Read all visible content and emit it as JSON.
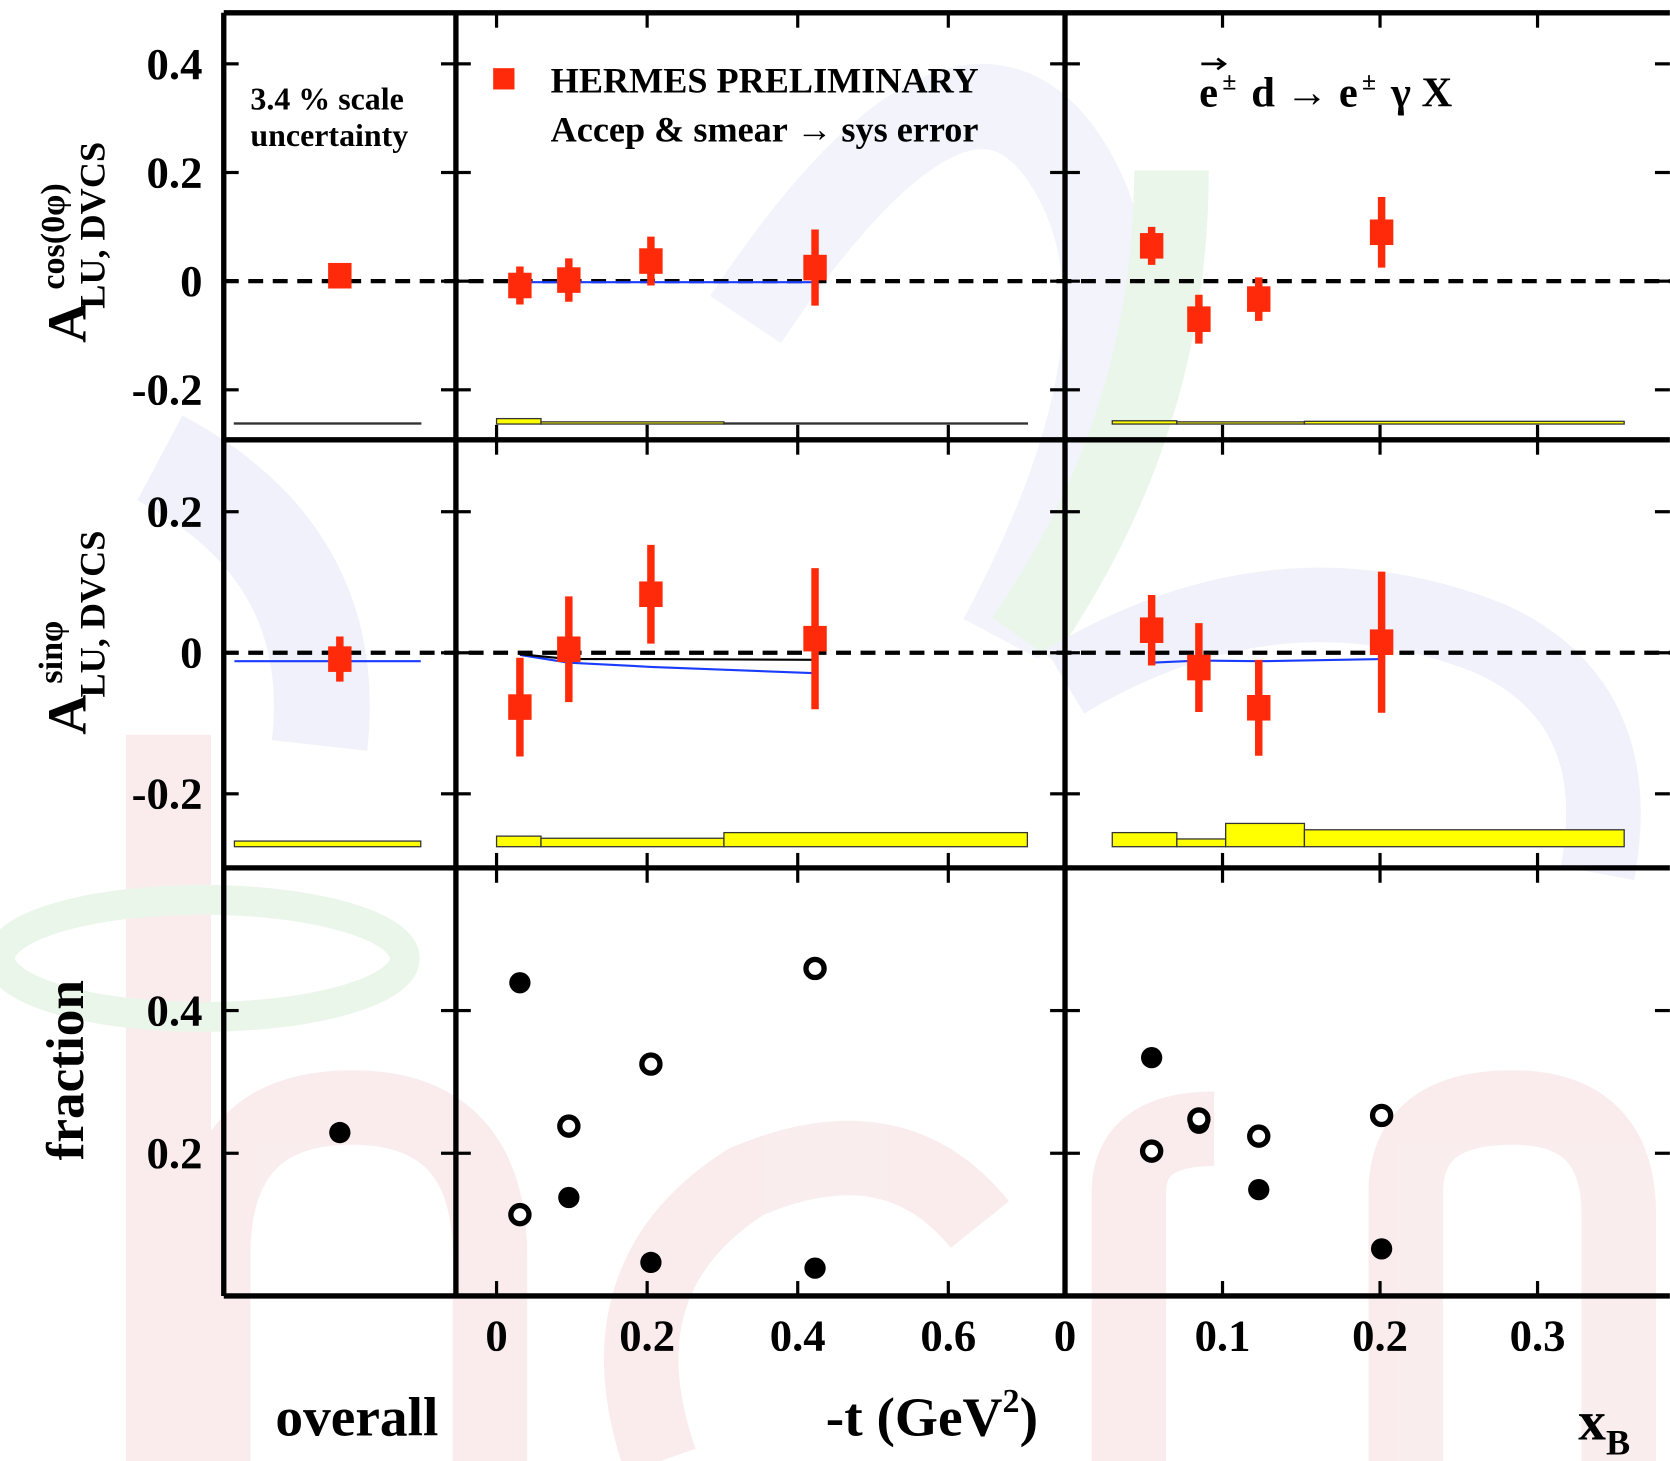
{
  "chart_data": {
    "type": "scatter",
    "legend": [
      {
        "label": "HERMES PRELIMINARY",
        "color": "#ff2a0a",
        "marker": "square"
      },
      {
        "label": "Accep & smear → sys error",
        "color": "#000000"
      }
    ],
    "annotations": {
      "scale_uncertainty": [
        "3.4 % scale",
        "uncertainty"
      ],
      "reaction": [
        "e",
        "±",
        "d → e",
        "±",
        "γ X"
      ]
    },
    "columns": [
      {
        "x_label": "overall"
      },
      {
        "x_label": {
          "main": "-t (GeV",
          "sup": "2",
          "end": ")"
        },
        "xlim": [
          -0.054,
          0.755
        ],
        "xticks": [
          0,
          0.2,
          0.4,
          0.6
        ]
      },
      {
        "x_label": {
          "main": "x",
          "sub": "B"
        },
        "xlim": [
          0,
          0.384
        ],
        "xticks": [
          0,
          0.1,
          0.2,
          0.3
        ]
      }
    ],
    "rows": [
      {
        "y_label": {
          "main": "A",
          "sup": "cos(0φ)",
          "sub": "LU, DVCS"
        },
        "ylim": [
          -0.292,
          0.494
        ],
        "yticks": [
          -0.2,
          0,
          0.2,
          0.4
        ],
        "zero_line": true
      },
      {
        "y_label": {
          "main": "A",
          "sup": "sinφ",
          "sub": "LU, DVCS"
        },
        "ylim": [
          -0.305,
          0.302
        ],
        "yticks": [
          -0.2,
          0,
          0.2
        ],
        "zero_line": true
      },
      {
        "y_label": "fraction",
        "ylim": [
          0,
          0.6
        ],
        "yticks": [
          0.2,
          0.4
        ],
        "zero_line": false
      }
    ],
    "panels": [
      [
        {
          "series": [
            {
              "values": [
                0.01
              ],
              "errors": [
                0.018
              ],
              "color": "#ff2a0a",
              "marker": "square"
            }
          ],
          "band": {
            "base": -0.263,
            "values": [
              0.002
            ],
            "color": "#ffff00"
          }
        },
        {
          "x": [
            0.031,
            0.096,
            0.205,
            0.423
          ],
          "series": [
            {
              "values": [
                -0.008,
                0.002,
                0.037,
                0.025
              ],
              "errors": [
                0.035,
                0.04,
                0.045,
                0.07
              ],
              "color": "#ff2a0a",
              "marker": "square"
            }
          ],
          "models": [
            {
              "color": "#1a3cff",
              "values": [
                -0.002,
                -0.002,
                -0.002,
                -0.002
              ]
            }
          ],
          "band": {
            "base": -0.263,
            "edges": [
              0,
              0.059,
              0.302,
              0.705
            ],
            "values": [
              0.01,
              0.004,
              0.002
            ],
            "color": "#ffff00"
          }
        },
        {
          "x": [
            0.055,
            0.085,
            0.123,
            0.201
          ],
          "series": [
            {
              "values": [
                0.065,
                -0.07,
                -0.033,
                0.09
              ],
              "errors": [
                0.035,
                0.045,
                0.04,
                0.065
              ],
              "color": "#ff2a0a",
              "marker": "square"
            }
          ],
          "band": {
            "base": -0.263,
            "edges": [
              0.03,
              0.071,
              0.152,
              0.355
            ],
            "values": [
              0.006,
              0.004,
              0.005
            ],
            "color": "#ffff00"
          }
        }
      ],
      [
        {
          "series": [
            {
              "values": [
                -0.009
              ],
              "errors": [
                0.032
              ],
              "color": "#ff2a0a",
              "marker": "square"
            }
          ],
          "models": [
            {
              "color": "#1a3cff",
              "values": [
                -0.012
              ]
            }
          ],
          "band": {
            "base": -0.275,
            "values": [
              0.008
            ],
            "color": "#ffff00"
          }
        },
        {
          "x": [
            0.031,
            0.096,
            0.205,
            0.423
          ],
          "series": [
            {
              "values": [
                -0.077,
                0.005,
                0.083,
                0.02
              ],
              "errors": [
                0.07,
                0.075,
                0.07,
                0.1
              ],
              "color": "#ff2a0a",
              "marker": "square"
            }
          ],
          "models": [
            {
              "color": "#1a3cff",
              "values": [
                -0.003,
                -0.014,
                -0.02,
                -0.029
              ]
            },
            {
              "color": "#000000",
              "values": [
                -0.002,
                -0.009,
                -0.009,
                -0.01
              ]
            }
          ],
          "band": {
            "base": -0.275,
            "edges": [
              0,
              0.059,
              0.302,
              0.705
            ],
            "values": [
              0.015,
              0.012,
              0.02
            ],
            "color": "#ffff00"
          }
        },
        {
          "x": [
            0.055,
            0.085,
            0.123,
            0.201
          ],
          "series": [
            {
              "values": [
                0.032,
                -0.021,
                -0.078,
                0.015
              ],
              "errors": [
                0.05,
                0.063,
                0.068,
                0.1
              ],
              "color": "#ff2a0a",
              "marker": "square"
            }
          ],
          "models": [
            {
              "color": "#1a3cff",
              "values": [
                -0.014,
                -0.011,
                -0.012,
                -0.009
              ]
            }
          ],
          "band": {
            "base": -0.275,
            "edges": [
              0.03,
              0.071,
              0.102,
              0.152,
              0.355
            ],
            "values": [
              0.02,
              0.011,
              0.033,
              0.024
            ],
            "color": "#ffff00"
          }
        }
      ],
      [
        {
          "series": [
            {
              "values": [
                0.229
              ],
              "color": "#000000",
              "marker": "circle"
            }
          ]
        },
        {
          "x": [
            0.031,
            0.096,
            0.205,
            0.423
          ],
          "series": [
            {
              "values": [
                0.439,
                0.138,
                0.047,
                0.039
              ],
              "color": "#000000",
              "marker": "circle"
            },
            {
              "values": [
                0.114,
                0.238,
                0.325,
                0.459
              ],
              "color": "#000000",
              "marker": "open-circle"
            }
          ]
        },
        {
          "x": [
            0.055,
            0.085,
            0.123,
            0.201
          ],
          "series": [
            {
              "values": [
                0.334,
                0.242,
                0.149,
                0.066
              ],
              "color": "#000000",
              "marker": "circle"
            },
            {
              "values": [
                0.203,
                0.248,
                0.224,
                0.253
              ],
              "color": "#000000",
              "marker": "open-circle"
            }
          ]
        }
      ]
    ]
  }
}
